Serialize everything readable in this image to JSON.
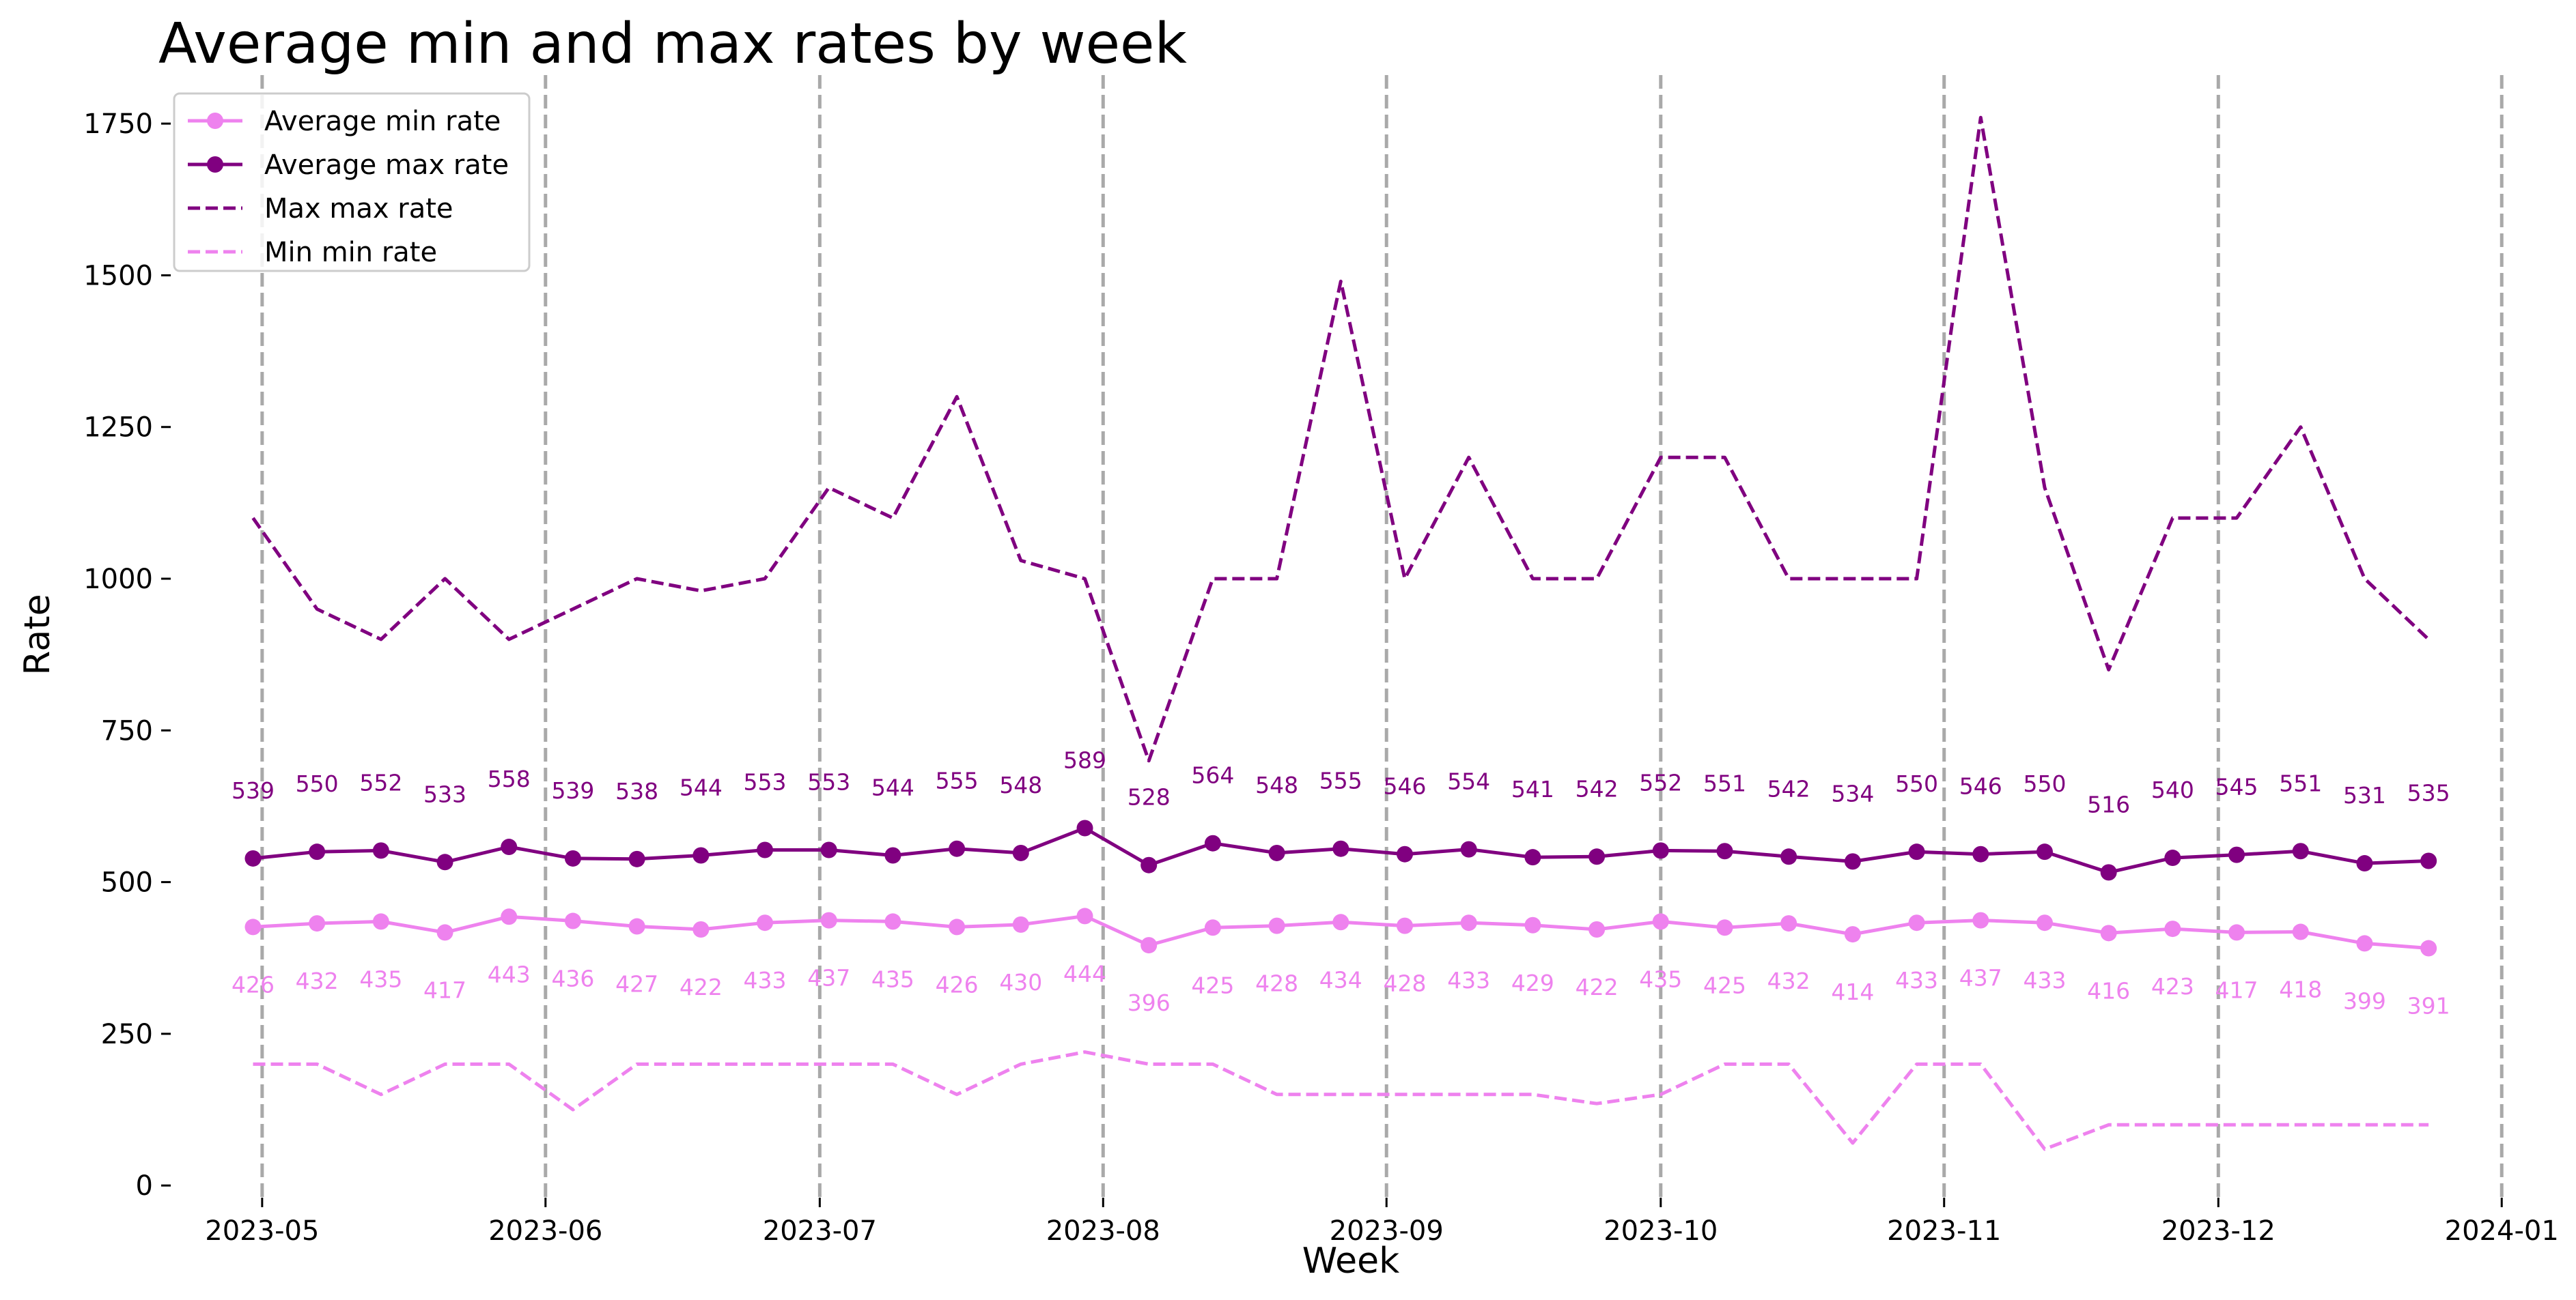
{
  "chart_data": {
    "type": "line",
    "title": "Average min and max rates by week",
    "xlabel": "Week",
    "ylabel": "Rate",
    "ylim": [
      -20,
      1830
    ],
    "xlim": [
      "2023-04-21",
      "2024-01-03"
    ],
    "grid": "vertical dashed lines at month starts",
    "legend_position": "top-left",
    "x_tick_labels": [
      "2023-05",
      "2023-06",
      "2023-07",
      "2023-08",
      "2023-09",
      "2023-10",
      "2023-11",
      "2023-12",
      "2024-01"
    ],
    "x_tick_dates": [
      "2023-05-01",
      "2023-06-01",
      "2023-07-01",
      "2023-08-01",
      "2023-09-01",
      "2023-10-01",
      "2023-11-01",
      "2023-12-01",
      "2024-01-01"
    ],
    "y_ticks": [
      0,
      250,
      500,
      750,
      1000,
      1250,
      1500,
      1750
    ],
    "x": [
      "2023-04-30",
      "2023-05-07",
      "2023-05-14",
      "2023-05-21",
      "2023-05-28",
      "2023-06-04",
      "2023-06-11",
      "2023-06-18",
      "2023-06-25",
      "2023-07-02",
      "2023-07-09",
      "2023-07-16",
      "2023-07-23",
      "2023-07-30",
      "2023-08-06",
      "2023-08-13",
      "2023-08-20",
      "2023-08-27",
      "2023-09-03",
      "2023-09-10",
      "2023-09-17",
      "2023-09-24",
      "2023-10-01",
      "2023-10-08",
      "2023-10-15",
      "2023-10-22",
      "2023-10-29",
      "2023-11-05",
      "2023-11-12",
      "2023-11-19",
      "2023-11-26",
      "2023-12-03",
      "2023-12-10",
      "2023-12-17",
      "2023-12-24"
    ],
    "series": [
      {
        "name": "Average min rate",
        "style": "solid-markers",
        "color": "#ee82ee",
        "values": [
          426,
          432,
          435,
          417,
          443,
          436,
          427,
          422,
          433,
          437,
          435,
          426,
          430,
          444,
          396,
          425,
          428,
          434,
          428,
          433,
          429,
          422,
          435,
          425,
          432,
          414,
          433,
          437,
          433,
          416,
          423,
          417,
          418,
          399,
          391
        ],
        "labels": [
          "426",
          "432",
          "435",
          "417",
          "443",
          "436",
          "427",
          "422",
          "433",
          "437",
          "435",
          "426",
          "430",
          "444",
          "396",
          "425",
          "428",
          "434",
          "428",
          "433",
          "429",
          "422",
          "435",
          "425",
          "432",
          "414",
          "433",
          "437",
          "433",
          "416",
          "423",
          "417",
          "418",
          "399",
          "391"
        ]
      },
      {
        "name": "Average max rate",
        "style": "solid-markers",
        "color": "#800080",
        "values": [
          539,
          550,
          552,
          533,
          558,
          539,
          538,
          544,
          553,
          553,
          544,
          555,
          548,
          589,
          528,
          564,
          548,
          555,
          546,
          554,
          541,
          542,
          552,
          551,
          542,
          534,
          550,
          546,
          550,
          516,
          540,
          545,
          551,
          531,
          535
        ],
        "labels": [
          "539",
          "550",
          "552",
          "533",
          "558",
          "539",
          "538",
          "544",
          "553",
          "553",
          "544",
          "555",
          "548",
          "589",
          "528",
          "564",
          "548",
          "555",
          "546",
          "554",
          "541",
          "542",
          "552",
          "551",
          "542",
          "534",
          "550",
          "546",
          "550",
          "516",
          "540",
          "545",
          "551",
          "531",
          "535"
        ]
      },
      {
        "name": "Max max rate",
        "style": "dashed",
        "color": "#800080",
        "values": [
          1100,
          950,
          900,
          1000,
          900,
          950,
          1000,
          980,
          1000,
          1150,
          1100,
          1300,
          1030,
          1000,
          700,
          1000,
          1000,
          1490,
          1000,
          1200,
          1000,
          1000,
          1200,
          1200,
          1000,
          1000,
          1000,
          1760,
          1150,
          850,
          1100,
          1100,
          1250,
          1000,
          900
        ]
      },
      {
        "name": "Min min rate",
        "style": "dashed",
        "color": "#ee82ee",
        "values": [
          200,
          200,
          150,
          200,
          200,
          125,
          200,
          200,
          200,
          200,
          200,
          150,
          200,
          220,
          200,
          200,
          150,
          150,
          150,
          150,
          150,
          135,
          150,
          200,
          200,
          70,
          200,
          200,
          60,
          100,
          100,
          100,
          100,
          100,
          100
        ]
      }
    ]
  }
}
